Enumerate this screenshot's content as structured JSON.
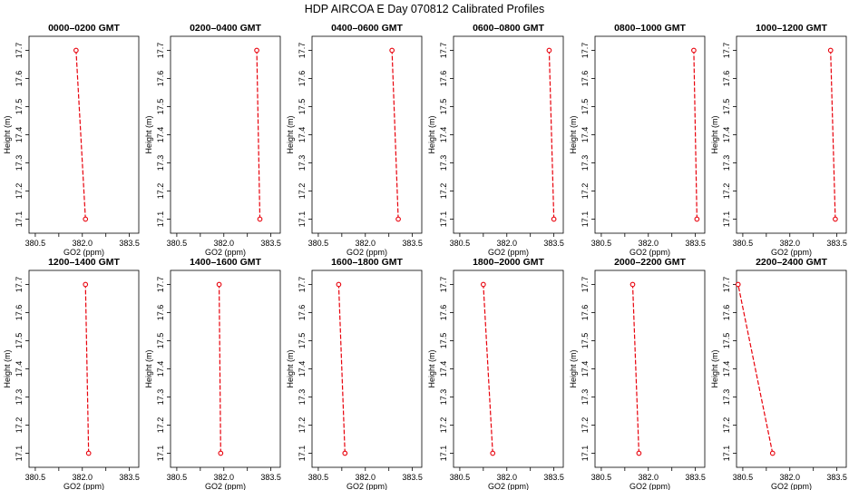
{
  "figure": {
    "title": "HDP AIRCOA E  Day 070812  Calibrated Profiles"
  },
  "style": {
    "line_color": "#e8000b",
    "marker_color": "#e8000b",
    "axis_color": "#000000"
  },
  "chart_data": [
    {
      "type": "line",
      "title": "0000–0200 GMT",
      "xlabel": "GO2 (ppm)",
      "ylabel": "Height (m)",
      "xlim": [
        380.3,
        383.8
      ],
      "ylim": [
        17.05,
        17.75
      ],
      "xticks": [
        380.5,
        381.25,
        382.0,
        382.75,
        383.5
      ],
      "xtick_labels": [
        "380.5",
        "",
        "382.0",
        "",
        "383.5"
      ],
      "yticks": [
        17.1,
        17.2,
        17.3,
        17.4,
        17.5,
        17.6,
        17.7
      ],
      "series": [
        {
          "x": [
            382.1,
            381.8
          ],
          "y": [
            17.1,
            17.7
          ],
          "marker": "circle"
        }
      ]
    },
    {
      "type": "line",
      "title": "0200–0400 GMT",
      "xlabel": "GO2 (ppm)",
      "ylabel": "Height (m)",
      "xlim": [
        380.3,
        383.8
      ],
      "ylim": [
        17.05,
        17.75
      ],
      "xticks": [
        380.5,
        381.25,
        382.0,
        382.75,
        383.5
      ],
      "xtick_labels": [
        "380.5",
        "",
        "382.0",
        "",
        "383.5"
      ],
      "yticks": [
        17.1,
        17.2,
        17.3,
        17.4,
        17.5,
        17.6,
        17.7
      ],
      "series": [
        {
          "x": [
            383.15,
            383.05
          ],
          "y": [
            17.1,
            17.7
          ],
          "marker": "circle"
        }
      ]
    },
    {
      "type": "line",
      "title": "0400–0600 GMT",
      "xlabel": "GO2 (ppm)",
      "ylabel": "Height (m)",
      "xlim": [
        380.3,
        383.8
      ],
      "ylim": [
        17.05,
        17.75
      ],
      "xticks": [
        380.5,
        381.25,
        382.0,
        382.75,
        383.5
      ],
      "xtick_labels": [
        "380.5",
        "",
        "382.0",
        "",
        "383.5"
      ],
      "yticks": [
        17.1,
        17.2,
        17.3,
        17.4,
        17.5,
        17.6,
        17.7
      ],
      "series": [
        {
          "x": [
            383.05,
            382.85
          ],
          "y": [
            17.1,
            17.7
          ],
          "marker": "circle"
        }
      ]
    },
    {
      "type": "line",
      "title": "0600–0800 GMT",
      "xlabel": "GO2 (ppm)",
      "ylabel": "Height (m)",
      "xlim": [
        380.3,
        383.8
      ],
      "ylim": [
        17.05,
        17.75
      ],
      "xticks": [
        380.5,
        381.25,
        382.0,
        382.75,
        383.5
      ],
      "xtick_labels": [
        "380.5",
        "",
        "382.0",
        "",
        "383.5"
      ],
      "yticks": [
        17.1,
        17.2,
        17.3,
        17.4,
        17.5,
        17.6,
        17.7
      ],
      "series": [
        {
          "x": [
            383.5,
            383.35
          ],
          "y": [
            17.1,
            17.7
          ],
          "marker": "circle"
        }
      ]
    },
    {
      "type": "line",
      "title": "0800–1000 GMT",
      "xlabel": "GO2 (ppm)",
      "ylabel": "Height (m)",
      "xlim": [
        380.3,
        383.8
      ],
      "ylim": [
        17.05,
        17.75
      ],
      "xticks": [
        380.5,
        381.25,
        382.0,
        382.75,
        383.5
      ],
      "xtick_labels": [
        "380.5",
        "",
        "382.0",
        "",
        "383.5"
      ],
      "yticks": [
        17.1,
        17.2,
        17.3,
        17.4,
        17.5,
        17.6,
        17.7
      ],
      "series": [
        {
          "x": [
            383.55,
            383.45
          ],
          "y": [
            17.1,
            17.7
          ],
          "marker": "circle"
        }
      ]
    },
    {
      "type": "line",
      "title": "1000–1200 GMT",
      "xlabel": "GO2 (ppm)",
      "ylabel": "Height (m)",
      "xlim": [
        380.3,
        383.8
      ],
      "ylim": [
        17.05,
        17.75
      ],
      "xticks": [
        380.5,
        381.25,
        382.0,
        382.75,
        383.5
      ],
      "xtick_labels": [
        "380.5",
        "",
        "382.0",
        "",
        "383.5"
      ],
      "yticks": [
        17.1,
        17.2,
        17.3,
        17.4,
        17.5,
        17.6,
        17.7
      ],
      "series": [
        {
          "x": [
            383.45,
            383.3
          ],
          "y": [
            17.1,
            17.7
          ],
          "marker": "circle"
        }
      ]
    },
    {
      "type": "line",
      "title": "1200–1400 GMT",
      "xlabel": "GO2 (ppm)",
      "ylabel": "Height (m)",
      "xlim": [
        380.3,
        383.8
      ],
      "ylim": [
        17.05,
        17.75
      ],
      "xticks": [
        380.5,
        381.25,
        382.0,
        382.75,
        383.5
      ],
      "xtick_labels": [
        "380.5",
        "",
        "382.0",
        "",
        "383.5"
      ],
      "yticks": [
        17.1,
        17.2,
        17.3,
        17.4,
        17.5,
        17.6,
        17.7
      ],
      "series": [
        {
          "x": [
            382.2,
            382.1
          ],
          "y": [
            17.1,
            17.7
          ],
          "marker": "circle"
        }
      ]
    },
    {
      "type": "line",
      "title": "1400–1600 GMT",
      "xlabel": "GO2 (ppm)",
      "ylabel": "Height (m)",
      "xlim": [
        380.3,
        383.8
      ],
      "ylim": [
        17.05,
        17.75
      ],
      "xticks": [
        380.5,
        381.25,
        382.0,
        382.75,
        383.5
      ],
      "xtick_labels": [
        "380.5",
        "",
        "382.0",
        "",
        "383.5"
      ],
      "yticks": [
        17.1,
        17.2,
        17.3,
        17.4,
        17.5,
        17.6,
        17.7
      ],
      "series": [
        {
          "x": [
            381.9,
            381.85
          ],
          "y": [
            17.1,
            17.7
          ],
          "marker": "circle"
        }
      ]
    },
    {
      "type": "line",
      "title": "1600–1800 GMT",
      "xlabel": "GO2 (ppm)",
      "ylabel": "Height (m)",
      "xlim": [
        380.3,
        383.8
      ],
      "ylim": [
        17.05,
        17.75
      ],
      "xticks": [
        380.5,
        381.25,
        382.0,
        382.75,
        383.5
      ],
      "xtick_labels": [
        "380.5",
        "",
        "382.0",
        "",
        "383.5"
      ],
      "yticks": [
        17.1,
        17.2,
        17.3,
        17.4,
        17.5,
        17.6,
        17.7
      ],
      "series": [
        {
          "x": [
            381.35,
            381.15
          ],
          "y": [
            17.1,
            17.7
          ],
          "marker": "circle"
        }
      ]
    },
    {
      "type": "line",
      "title": "1800–2000 GMT",
      "xlabel": "GO2 (ppm)",
      "ylabel": "Height (m)",
      "xlim": [
        380.3,
        383.8
      ],
      "ylim": [
        17.05,
        17.75
      ],
      "xticks": [
        380.5,
        381.25,
        382.0,
        382.75,
        383.5
      ],
      "xtick_labels": [
        "380.5",
        "",
        "382.0",
        "",
        "383.5"
      ],
      "yticks": [
        17.1,
        17.2,
        17.3,
        17.4,
        17.5,
        17.6,
        17.7
      ],
      "series": [
        {
          "x": [
            381.55,
            381.25
          ],
          "y": [
            17.1,
            17.7
          ],
          "marker": "circle"
        }
      ]
    },
    {
      "type": "line",
      "title": "2000–2200 GMT",
      "xlabel": "GO2 (ppm)",
      "ylabel": "Height (m)",
      "xlim": [
        380.3,
        383.8
      ],
      "ylim": [
        17.05,
        17.75
      ],
      "xticks": [
        380.5,
        381.25,
        382.0,
        382.75,
        383.5
      ],
      "xtick_labels": [
        "380.5",
        "",
        "382.0",
        "",
        "383.5"
      ],
      "yticks": [
        17.1,
        17.2,
        17.3,
        17.4,
        17.5,
        17.6,
        17.7
      ],
      "series": [
        {
          "x": [
            381.7,
            381.5
          ],
          "y": [
            17.1,
            17.7
          ],
          "marker": "circle"
        }
      ]
    },
    {
      "type": "line",
      "title": "2200–2400 GMT",
      "xlabel": "GO2 (ppm)",
      "ylabel": "Height (m)",
      "xlim": [
        380.3,
        383.8
      ],
      "ylim": [
        17.05,
        17.75
      ],
      "xticks": [
        380.5,
        381.25,
        382.0,
        382.75,
        383.5
      ],
      "xtick_labels": [
        "380.5",
        "",
        "382.0",
        "",
        "383.5"
      ],
      "yticks": [
        17.1,
        17.2,
        17.3,
        17.4,
        17.5,
        17.6,
        17.7
      ],
      "series": [
        {
          "x": [
            381.45,
            380.35
          ],
          "y": [
            17.1,
            17.7
          ],
          "marker": "circle"
        }
      ]
    }
  ]
}
